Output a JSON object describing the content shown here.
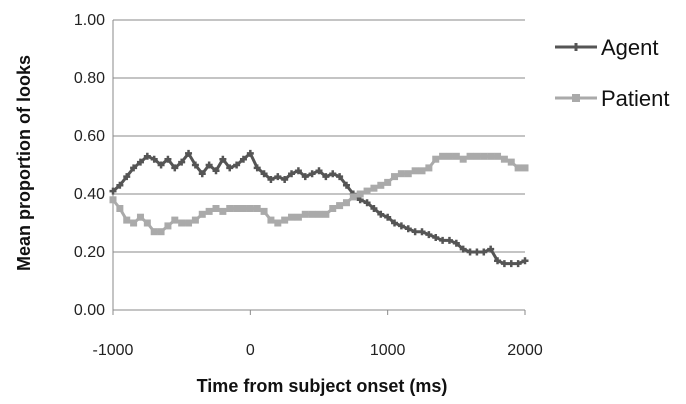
{
  "chart_data": {
    "type": "line",
    "title": "",
    "xlabel": "Time from subject onset  (ms)",
    "ylabel": "Mean proportion of looks",
    "xlim": [
      -1000,
      2000
    ],
    "ylim": [
      0,
      1
    ],
    "x_ticks": [
      "-1000",
      "0",
      "1000",
      "2000"
    ],
    "y_ticks": [
      "0.00",
      "0.20",
      "0.40",
      "0.60",
      "0.80",
      "1.00"
    ],
    "grid": "horizontal",
    "legend_position": "right",
    "series": [
      {
        "name": "Agent",
        "color": "#555555",
        "marker": "cross",
        "x": [
          -1000,
          -950,
          -900,
          -850,
          -800,
          -750,
          -700,
          -650,
          -600,
          -550,
          -500,
          -450,
          -400,
          -350,
          -300,
          -250,
          -200,
          -150,
          -100,
          -50,
          0,
          50,
          100,
          150,
          200,
          250,
          300,
          350,
          400,
          450,
          500,
          550,
          600,
          650,
          700,
          750,
          800,
          850,
          900,
          950,
          1000,
          1050,
          1100,
          1150,
          1200,
          1250,
          1300,
          1350,
          1400,
          1450,
          1500,
          1550,
          1600,
          1650,
          1700,
          1750,
          1800,
          1850,
          1900,
          1950,
          2000
        ],
        "y": [
          0.41,
          0.43,
          0.46,
          0.49,
          0.51,
          0.53,
          0.52,
          0.5,
          0.52,
          0.49,
          0.51,
          0.54,
          0.5,
          0.47,
          0.5,
          0.48,
          0.52,
          0.49,
          0.5,
          0.52,
          0.54,
          0.49,
          0.47,
          0.45,
          0.46,
          0.45,
          0.47,
          0.48,
          0.46,
          0.47,
          0.48,
          0.46,
          0.47,
          0.46,
          0.43,
          0.4,
          0.38,
          0.37,
          0.35,
          0.33,
          0.32,
          0.3,
          0.29,
          0.28,
          0.27,
          0.27,
          0.26,
          0.25,
          0.24,
          0.24,
          0.23,
          0.21,
          0.2,
          0.2,
          0.2,
          0.21,
          0.17,
          0.16,
          0.16,
          0.16,
          0.17
        ]
      },
      {
        "name": "Patient",
        "color": "#aaaaaa",
        "marker": "square",
        "x": [
          -1000,
          -950,
          -900,
          -850,
          -800,
          -750,
          -700,
          -650,
          -600,
          -550,
          -500,
          -450,
          -400,
          -350,
          -300,
          -250,
          -200,
          -150,
          -100,
          -50,
          0,
          50,
          100,
          150,
          200,
          250,
          300,
          350,
          400,
          450,
          500,
          550,
          600,
          650,
          700,
          750,
          800,
          850,
          900,
          950,
          1000,
          1050,
          1100,
          1150,
          1200,
          1250,
          1300,
          1350,
          1400,
          1450,
          1500,
          1550,
          1600,
          1650,
          1700,
          1750,
          1800,
          1850,
          1900,
          1950,
          2000
        ],
        "y": [
          0.38,
          0.35,
          0.31,
          0.3,
          0.32,
          0.3,
          0.27,
          0.27,
          0.29,
          0.31,
          0.3,
          0.3,
          0.31,
          0.33,
          0.34,
          0.35,
          0.34,
          0.35,
          0.35,
          0.35,
          0.35,
          0.35,
          0.34,
          0.31,
          0.3,
          0.31,
          0.32,
          0.32,
          0.33,
          0.33,
          0.33,
          0.33,
          0.35,
          0.36,
          0.37,
          0.39,
          0.4,
          0.41,
          0.42,
          0.43,
          0.44,
          0.46,
          0.47,
          0.47,
          0.48,
          0.48,
          0.49,
          0.52,
          0.53,
          0.53,
          0.53,
          0.52,
          0.53,
          0.53,
          0.53,
          0.53,
          0.53,
          0.52,
          0.51,
          0.49,
          0.49
        ]
      }
    ]
  }
}
